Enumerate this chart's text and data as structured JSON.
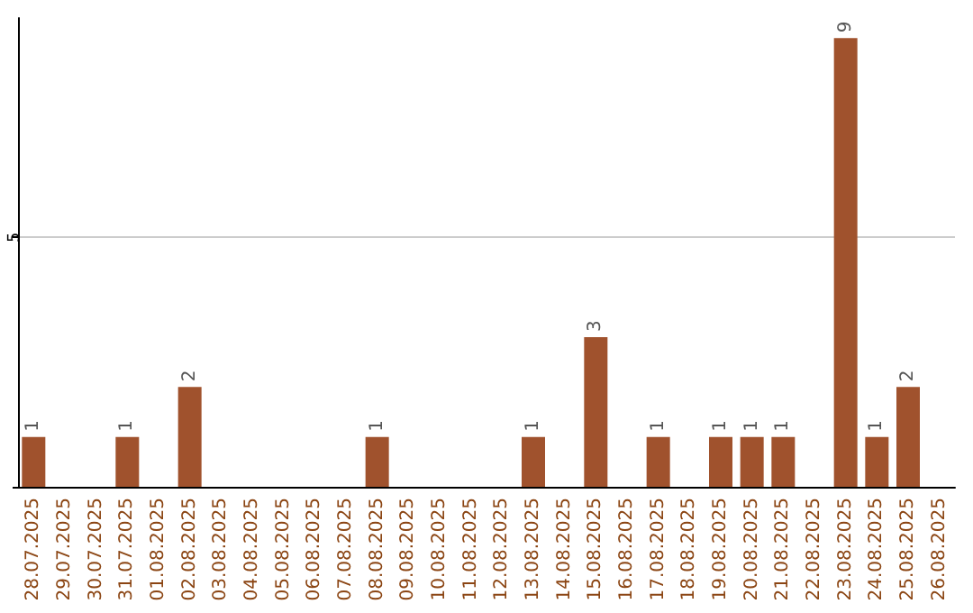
{
  "chart_data": {
    "type": "bar",
    "categories": [
      "28.07.2025",
      "29.07.2025",
      "30.07.2025",
      "31.07.2025",
      "01.08.2025",
      "02.08.2025",
      "03.08.2025",
      "04.08.2025",
      "05.08.2025",
      "06.08.2025",
      "07.08.2025",
      "08.08.2025",
      "09.08.2025",
      "10.08.2025",
      "11.08.2025",
      "12.08.2025",
      "13.08.2025",
      "14.08.2025",
      "15.08.2025",
      "16.08.2025",
      "17.08.2025",
      "18.08.2025",
      "19.08.2025",
      "20.08.2025",
      "21.08.2025",
      "22.08.2025",
      "23.08.2025",
      "24.08.2025",
      "25.08.2025",
      "26.08.2025"
    ],
    "values": [
      1,
      0,
      0,
      1,
      0,
      2,
      0,
      0,
      0,
      0,
      0,
      1,
      0,
      0,
      0,
      0,
      1,
      0,
      3,
      0,
      1,
      0,
      1,
      1,
      1,
      0,
      9,
      1,
      2,
      0
    ],
    "value_labels": [
      "1",
      null,
      null,
      "1",
      null,
      "2",
      null,
      null,
      null,
      null,
      null,
      "1",
      null,
      null,
      null,
      null,
      "1",
      null,
      "3",
      null,
      "1",
      null,
      "1",
      "1",
      "1",
      null,
      "9",
      "1",
      "2",
      null
    ],
    "color": "#a0522d",
    "ylim": [
      0,
      9.4
    ],
    "yticks": [
      {
        "value": 0,
        "label": null
      },
      5
    ],
    "grid": "y"
  }
}
